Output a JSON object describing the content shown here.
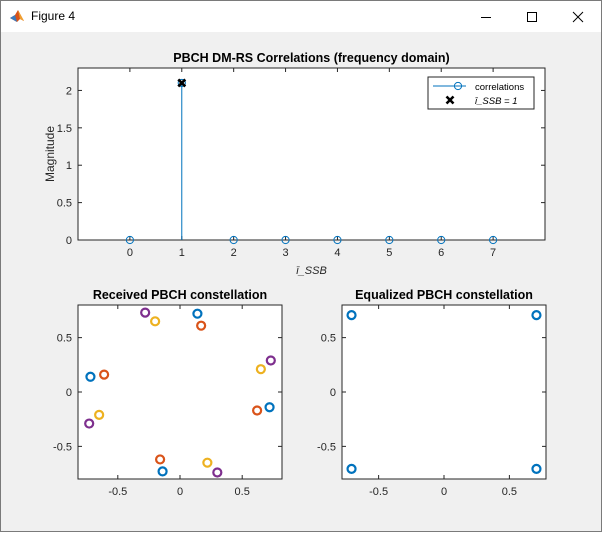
{
  "window": {
    "title": "Figure 4"
  },
  "colors": {
    "matlab_blue": "#0072BD",
    "matlab_orange": "#D95319",
    "matlab_yellow": "#EDB120",
    "matlab_purple": "#7E2F8E",
    "figure_bg": "#f0f0f0",
    "axes_bg": "#ffffff",
    "axis_color": "#262626"
  },
  "chart_data": [
    {
      "id": "correlations",
      "type": "stem",
      "title": "PBCH DM-RS Correlations (frequency domain)",
      "xlabel": "ī_SSB",
      "ylabel": "Magnitude",
      "xlim": [
        -1,
        8
      ],
      "ylim": [
        0,
        2.3
      ],
      "xticks": [
        0,
        1,
        2,
        3,
        4,
        5,
        6,
        7
      ],
      "yticks": [
        0,
        0.5,
        1,
        1.5,
        2
      ],
      "ytick_labels": [
        "0",
        "0.5",
        "1",
        "1.5",
        "2"
      ],
      "series": [
        {
          "name": "correlations",
          "marker": "open-circle",
          "x": [
            0,
            1,
            2,
            3,
            4,
            5,
            6,
            7
          ],
          "values": [
            0.0,
            2.1,
            0.0,
            0.0,
            0.0,
            0.0,
            0.0,
            0.0
          ]
        },
        {
          "name": "ī_SSB = 1",
          "marker": "cross",
          "x": [
            1
          ],
          "values": [
            2.1
          ]
        }
      ],
      "legend": {
        "position": "top-right",
        "entries": [
          "correlations",
          "ī_SSB = 1"
        ]
      }
    },
    {
      "id": "received",
      "type": "scatter",
      "title": "Received PBCH constellation",
      "xlim": [
        -0.82,
        0.82
      ],
      "ylim": [
        -0.8,
        0.8
      ],
      "xticks": [
        -0.5,
        0,
        0.5
      ],
      "xtick_labels": [
        "-0.5",
        "0",
        "0.5"
      ],
      "yticks": [
        -0.5,
        0,
        0.5
      ],
      "ytick_labels": [
        "-0.5",
        "0",
        "0.5"
      ],
      "series": [
        {
          "color": "#0072BD",
          "points": [
            [
              0.14,
              0.72
            ],
            [
              0.72,
              -0.14
            ],
            [
              -0.14,
              -0.73
            ],
            [
              -0.72,
              0.14
            ]
          ]
        },
        {
          "color": "#D95319",
          "points": [
            [
              0.17,
              0.61
            ],
            [
              0.62,
              -0.17
            ],
            [
              -0.16,
              -0.62
            ],
            [
              -0.61,
              0.16
            ]
          ]
        },
        {
          "color": "#EDB120",
          "points": [
            [
              -0.2,
              0.65
            ],
            [
              0.65,
              0.21
            ],
            [
              0.22,
              -0.65
            ],
            [
              -0.65,
              -0.21
            ]
          ]
        },
        {
          "color": "#7E2F8E",
          "points": [
            [
              -0.28,
              0.73
            ],
            [
              0.73,
              0.29
            ],
            [
              0.3,
              -0.74
            ],
            [
              -0.73,
              -0.29
            ]
          ]
        }
      ]
    },
    {
      "id": "equalized",
      "type": "scatter",
      "title": "Equalized PBCH constellation",
      "xlim": [
        -0.78,
        0.78
      ],
      "ylim": [
        -0.8,
        0.8
      ],
      "xticks": [
        -0.5,
        0,
        0.5
      ],
      "xtick_labels": [
        "-0.5",
        "0",
        "0.5"
      ],
      "yticks": [
        -0.5,
        0,
        0.5
      ],
      "ytick_labels": [
        "-0.5",
        "0",
        "0.5"
      ],
      "series": [
        {
          "color": "#0072BD",
          "points": [
            [
              -0.707,
              0.707
            ],
            [
              0.707,
              0.707
            ],
            [
              -0.707,
              -0.707
            ],
            [
              0.707,
              -0.707
            ]
          ]
        }
      ]
    }
  ]
}
